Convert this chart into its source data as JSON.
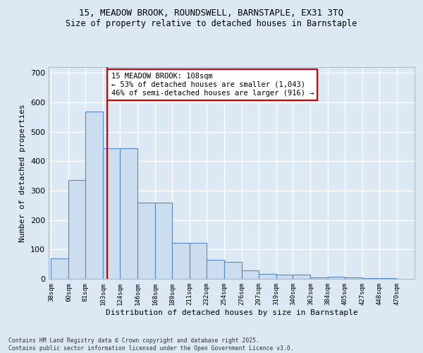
{
  "title_line1": "15, MEADOW BROOK, ROUNDSWELL, BARNSTAPLE, EX31 3TQ",
  "title_line2": "Size of property relative to detached houses in Barnstaple",
  "xlabel": "Distribution of detached houses by size in Barnstaple",
  "ylabel": "Number of detached properties",
  "footer": "Contains HM Land Registry data © Crown copyright and database right 2025.\nContains public sector information licensed under the Open Government Licence v3.0.",
  "bar_left_edges": [
    38,
    60,
    81,
    103,
    124,
    146,
    168,
    189,
    211,
    232,
    254,
    276,
    297,
    319,
    340,
    362,
    384,
    405,
    427,
    448
  ],
  "bar_widths": [
    22,
    21,
    22,
    21,
    22,
    22,
    21,
    22,
    21,
    22,
    22,
    21,
    22,
    21,
    22,
    22,
    21,
    22,
    21,
    22
  ],
  "bar_heights": [
    70,
    335,
    570,
    445,
    445,
    260,
    260,
    122,
    122,
    65,
    57,
    30,
    17,
    15,
    15,
    5,
    7,
    5,
    2,
    2
  ],
  "bar_color": "#ccddf0",
  "bar_edge_color": "#5588cc",
  "fig_bg_color": "#dde8f5",
  "axes_bg_color": "#dde8f5",
  "grid_color": "#ffffff",
  "vline_x": 108,
  "vline_color": "#cc0000",
  "ylim": [
    0,
    720
  ],
  "yticks": [
    0,
    100,
    200,
    300,
    400,
    500,
    600,
    700
  ],
  "xlim": [
    35,
    492
  ],
  "annotation_text": "15 MEADOW BROOK: 108sqm\n← 53% of detached houses are smaller (1,043)\n46% of semi-detached houses are larger (916) →",
  "annotation_box_facecolor": "#ffffff",
  "annotation_box_edgecolor": "#cc0000",
  "tick_labels": [
    "38sqm",
    "60sqm",
    "81sqm",
    "103sqm",
    "124sqm",
    "146sqm",
    "168sqm",
    "189sqm",
    "211sqm",
    "232sqm",
    "254sqm",
    "276sqm",
    "297sqm",
    "319sqm",
    "340sqm",
    "362sqm",
    "384sqm",
    "405sqm",
    "427sqm",
    "448sqm",
    "470sqm"
  ]
}
